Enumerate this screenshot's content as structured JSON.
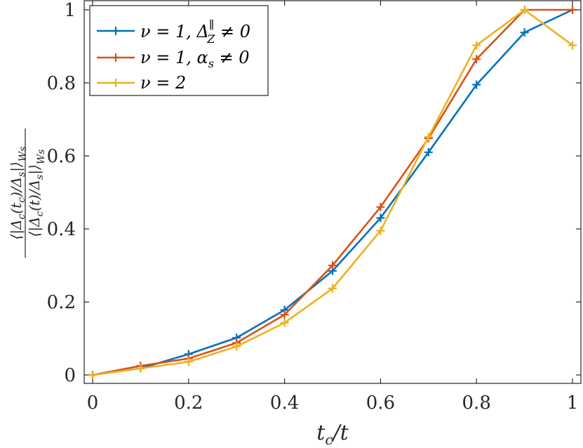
{
  "chart_data": {
    "type": "line",
    "xlabel": "t_c/t",
    "ylabel": "⟨|Δc(tc)/Δs|⟩Ws / ⟨|Δc(t)/Δs|⟩Ws",
    "xlim": [
      0,
      1
    ],
    "ylim": [
      0,
      1
    ],
    "x_ticks": [
      "0",
      "0.2",
      "0.4",
      "0.6",
      "0.8",
      "1"
    ],
    "y_ticks": [
      "0",
      "0.2",
      "0.4",
      "0.6",
      "0.8",
      "1"
    ],
    "grid": false,
    "legend_position": "top-left",
    "x": [
      0,
      0.1,
      0.2,
      0.3,
      0.4,
      0.5,
      0.6,
      0.7,
      0.8,
      0.9,
      1.0
    ],
    "series": [
      {
        "name": "ν = 1, Δ_Z^∥ ≠ 0",
        "color": "#0072BD",
        "values": [
          0,
          0.018,
          0.057,
          0.102,
          0.178,
          0.285,
          0.43,
          0.61,
          0.795,
          0.938,
          1.0
        ]
      },
      {
        "name": "ν = 1, α_s ≠ 0",
        "color": "#D95319",
        "values": [
          0,
          0.025,
          0.045,
          0.088,
          0.165,
          0.3,
          0.46,
          0.648,
          0.865,
          1.0,
          1.0
        ]
      },
      {
        "name": "ν = 2",
        "color": "#EDB120",
        "values": [
          0,
          0.018,
          0.036,
          0.078,
          0.143,
          0.237,
          0.395,
          0.652,
          0.903,
          1.0,
          0.903
        ]
      }
    ]
  }
}
